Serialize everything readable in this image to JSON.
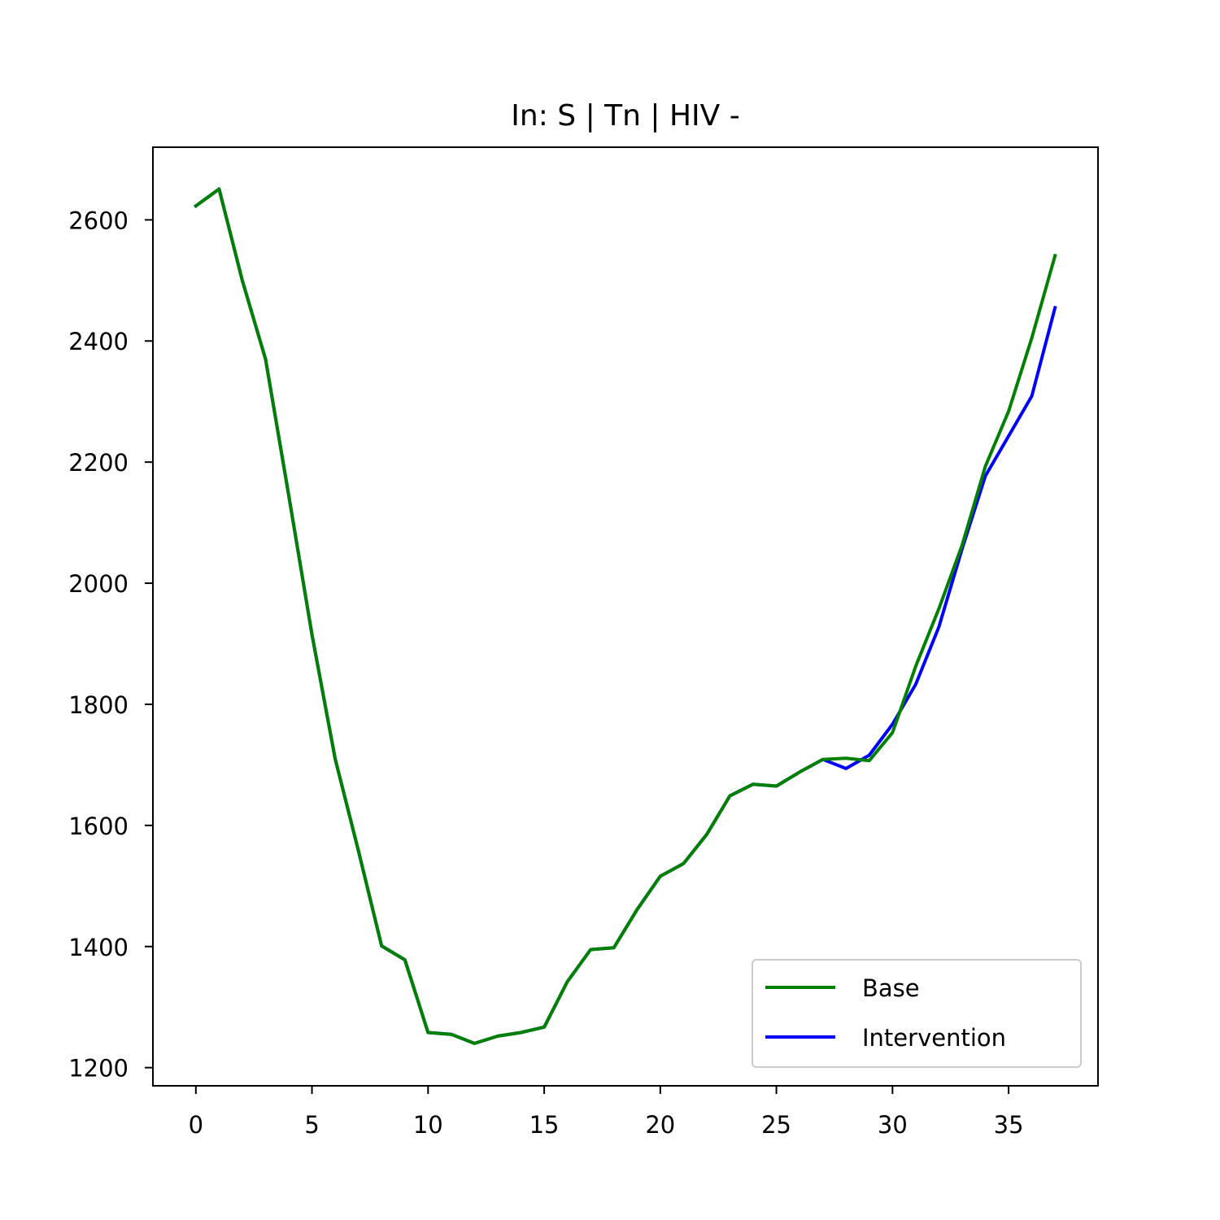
{
  "chart_data": {
    "type": "line",
    "title": "In: S | Tn | HIV -",
    "xlabel": "",
    "ylabel": "",
    "xlim": [
      -1.85,
      38.85
    ],
    "ylim": [
      1170,
      2720
    ],
    "xticks": [
      0,
      5,
      10,
      15,
      20,
      25,
      30,
      35
    ],
    "yticks": [
      1200,
      1400,
      1600,
      1800,
      2000,
      2200,
      2400,
      2600
    ],
    "grid": false,
    "legend_position": "lower-right",
    "x": [
      0,
      1,
      2,
      3,
      4,
      5,
      6,
      7,
      8,
      9,
      10,
      11,
      12,
      13,
      14,
      15,
      16,
      17,
      18,
      19,
      20,
      21,
      22,
      23,
      24,
      25,
      26,
      27,
      28,
      29,
      30,
      31,
      32,
      33,
      34,
      35,
      36,
      37
    ],
    "series": [
      {
        "name": "Intervention",
        "color": "#0000ff",
        "values": [
          2623,
          2651,
          2500,
          2370,
          2145,
          1915,
          1710,
          1558,
          1401,
          1378,
          1258,
          1255,
          1240,
          1252,
          1258,
          1267,
          1342,
          1395,
          1398,
          1461,
          1516,
          1537,
          1585,
          1649,
          1668,
          1665,
          1688,
          1709,
          1694,
          1716,
          1767,
          1833,
          1928,
          2057,
          2177,
          2243,
          2309,
          2455
        ]
      },
      {
        "name": "Base",
        "color": "#008000",
        "values": [
          2623,
          2651,
          2500,
          2370,
          2145,
          1915,
          1710,
          1558,
          1401,
          1378,
          1258,
          1255,
          1240,
          1252,
          1258,
          1267,
          1342,
          1395,
          1398,
          1461,
          1516,
          1537,
          1585,
          1649,
          1668,
          1665,
          1688,
          1709,
          1711,
          1707,
          1753,
          1863,
          1958,
          2063,
          2193,
          2284,
          2405,
          2541
        ]
      }
    ],
    "legend": [
      {
        "label": "Base",
        "color": "#008000"
      },
      {
        "label": "Intervention",
        "color": "#0000ff"
      }
    ]
  }
}
